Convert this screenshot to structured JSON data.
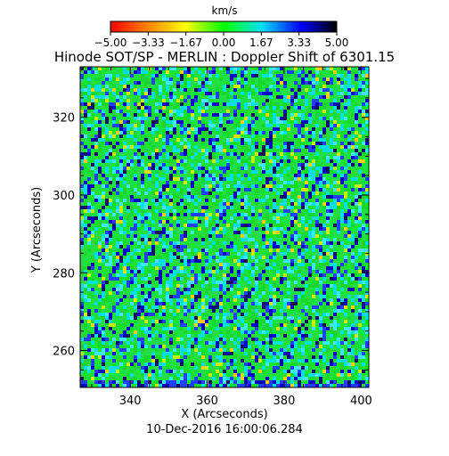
{
  "chart_data": {
    "type": "heatmap",
    "title": "Hinode SOT/SP - MERLIN : Doppler Shift of 6301.15",
    "xlabel": "X (Arcseconds)",
    "ylabel": "Y (Arcseconds)",
    "timestamp": "10-Dec-2016 16:00:06.284",
    "xlim": [
      327,
      402
    ],
    "ylim": [
      250.5,
      333
    ],
    "x_ticks": [
      "340",
      "360",
      "380",
      "400"
    ],
    "y_ticks": [
      "260",
      "280",
      "300",
      "320"
    ],
    "colorbar": {
      "label": "km/s",
      "range": [
        -5.0,
        5.0
      ],
      "tick_labels": [
        "−5.00",
        "−3.33",
        "−1.67",
        "0.00",
        "1.67",
        "3.33",
        "5.00"
      ],
      "colors": [
        "#ff0000",
        "#ff8000",
        "#ffff00",
        "#00ff00",
        "#00e0ff",
        "#0000ff",
        "#000000"
      ]
    },
    "values_summary": "Doppler velocity field, mostly between -1 and +2 km/s with scattered blue/dark downflow lanes"
  }
}
